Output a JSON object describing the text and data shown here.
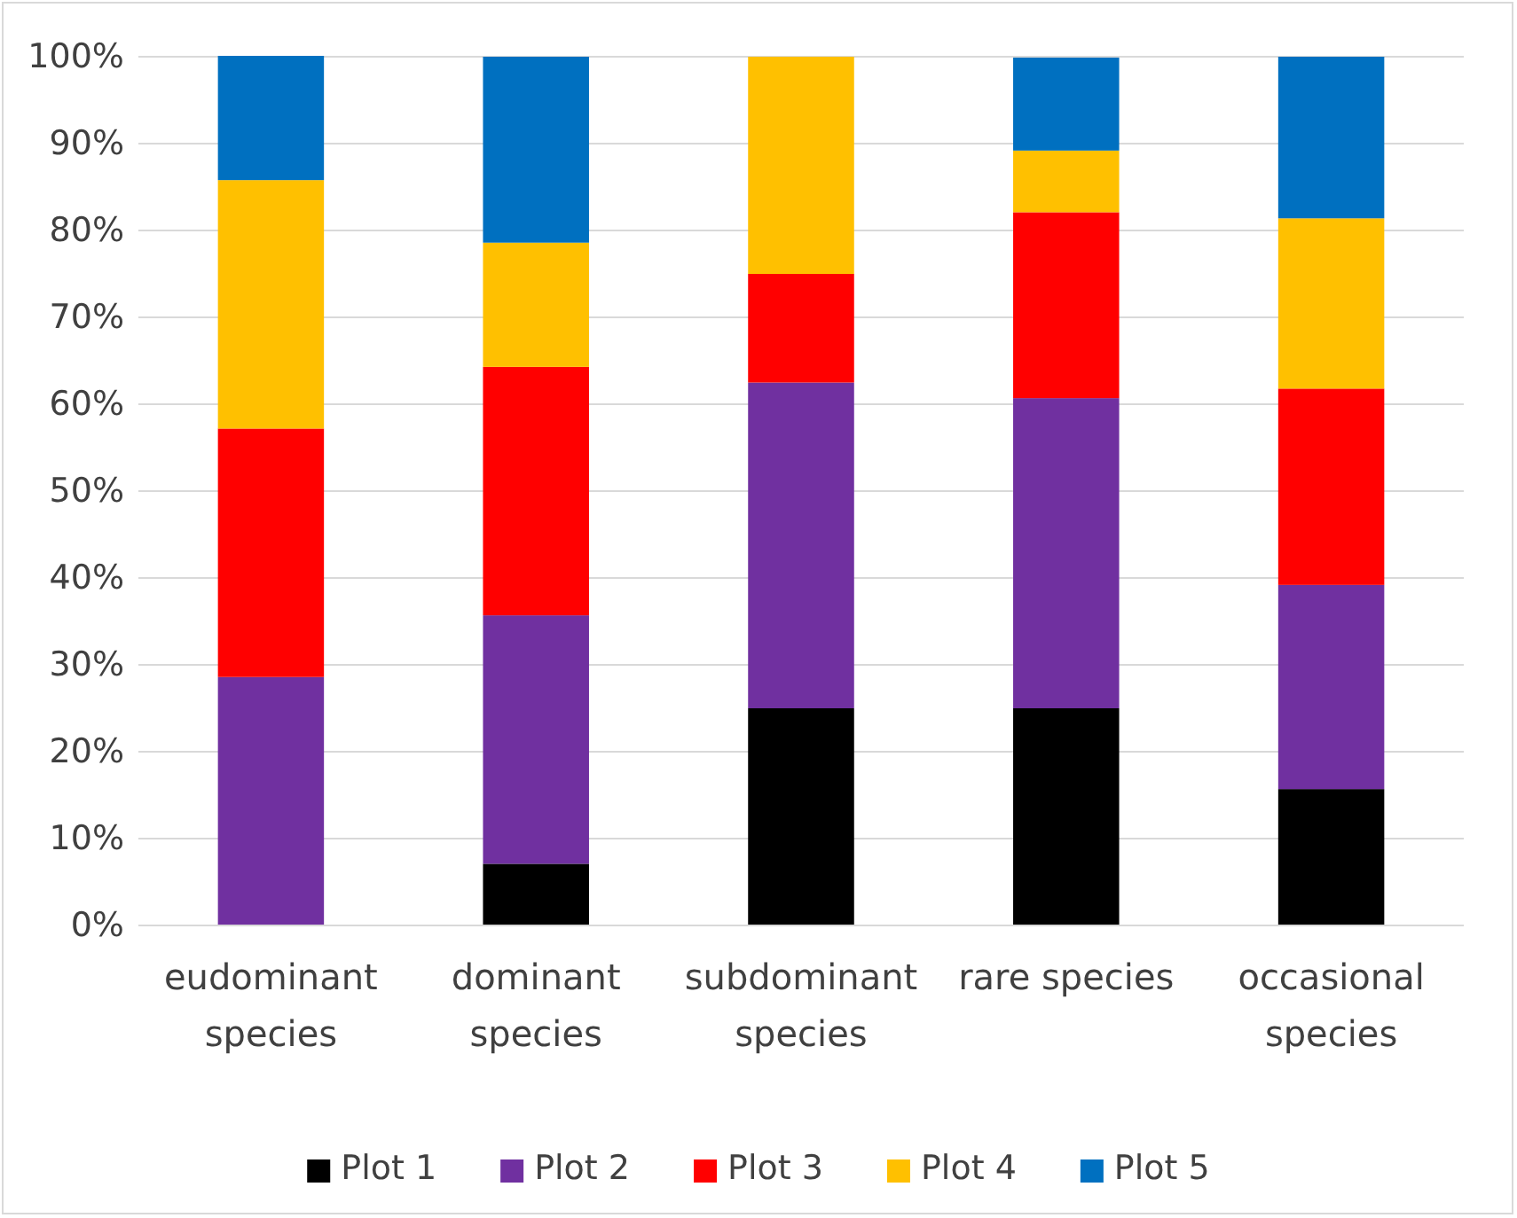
{
  "chart_data": {
    "type": "bar",
    "stacked": true,
    "categories": [
      "eudominant species",
      "dominant species",
      "subdominant species",
      "rare species",
      "occasional species"
    ],
    "series": [
      {
        "name": "Plot 1",
        "color": "#000000",
        "values": [
          0,
          7.1,
          25,
          25,
          15.7
        ]
      },
      {
        "name": "Plot 2",
        "color": "#7030a0",
        "values": [
          28.6,
          28.6,
          37.5,
          35.7,
          23.5
        ]
      },
      {
        "name": "Plot 3",
        "color": "#ff0000",
        "values": [
          28.6,
          28.6,
          12.5,
          21.4,
          22.6
        ]
      },
      {
        "name": "Plot 4",
        "color": "#ffc000",
        "values": [
          28.6,
          14.3,
          25,
          7.1,
          19.6
        ]
      },
      {
        "name": "Plot 5",
        "color": "#0070c0",
        "values": [
          14.3,
          21.4,
          0,
          10.7,
          18.6
        ]
      }
    ],
    "ylim": [
      0,
      100
    ],
    "yticks": [
      {
        "value": 0,
        "label": "0%"
      },
      {
        "value": 10,
        "label": "10%"
      },
      {
        "value": 20,
        "label": "20%"
      },
      {
        "value": 30,
        "label": "30%"
      },
      {
        "value": 40,
        "label": "40%"
      },
      {
        "value": 50,
        "label": "50%"
      },
      {
        "value": 60,
        "label": "60%"
      },
      {
        "value": 70,
        "label": "70%"
      },
      {
        "value": 80,
        "label": "80%"
      },
      {
        "value": 90,
        "label": "90%"
      },
      {
        "value": 100,
        "label": "100%"
      }
    ],
    "grid": "y",
    "legend": "bottom"
  }
}
